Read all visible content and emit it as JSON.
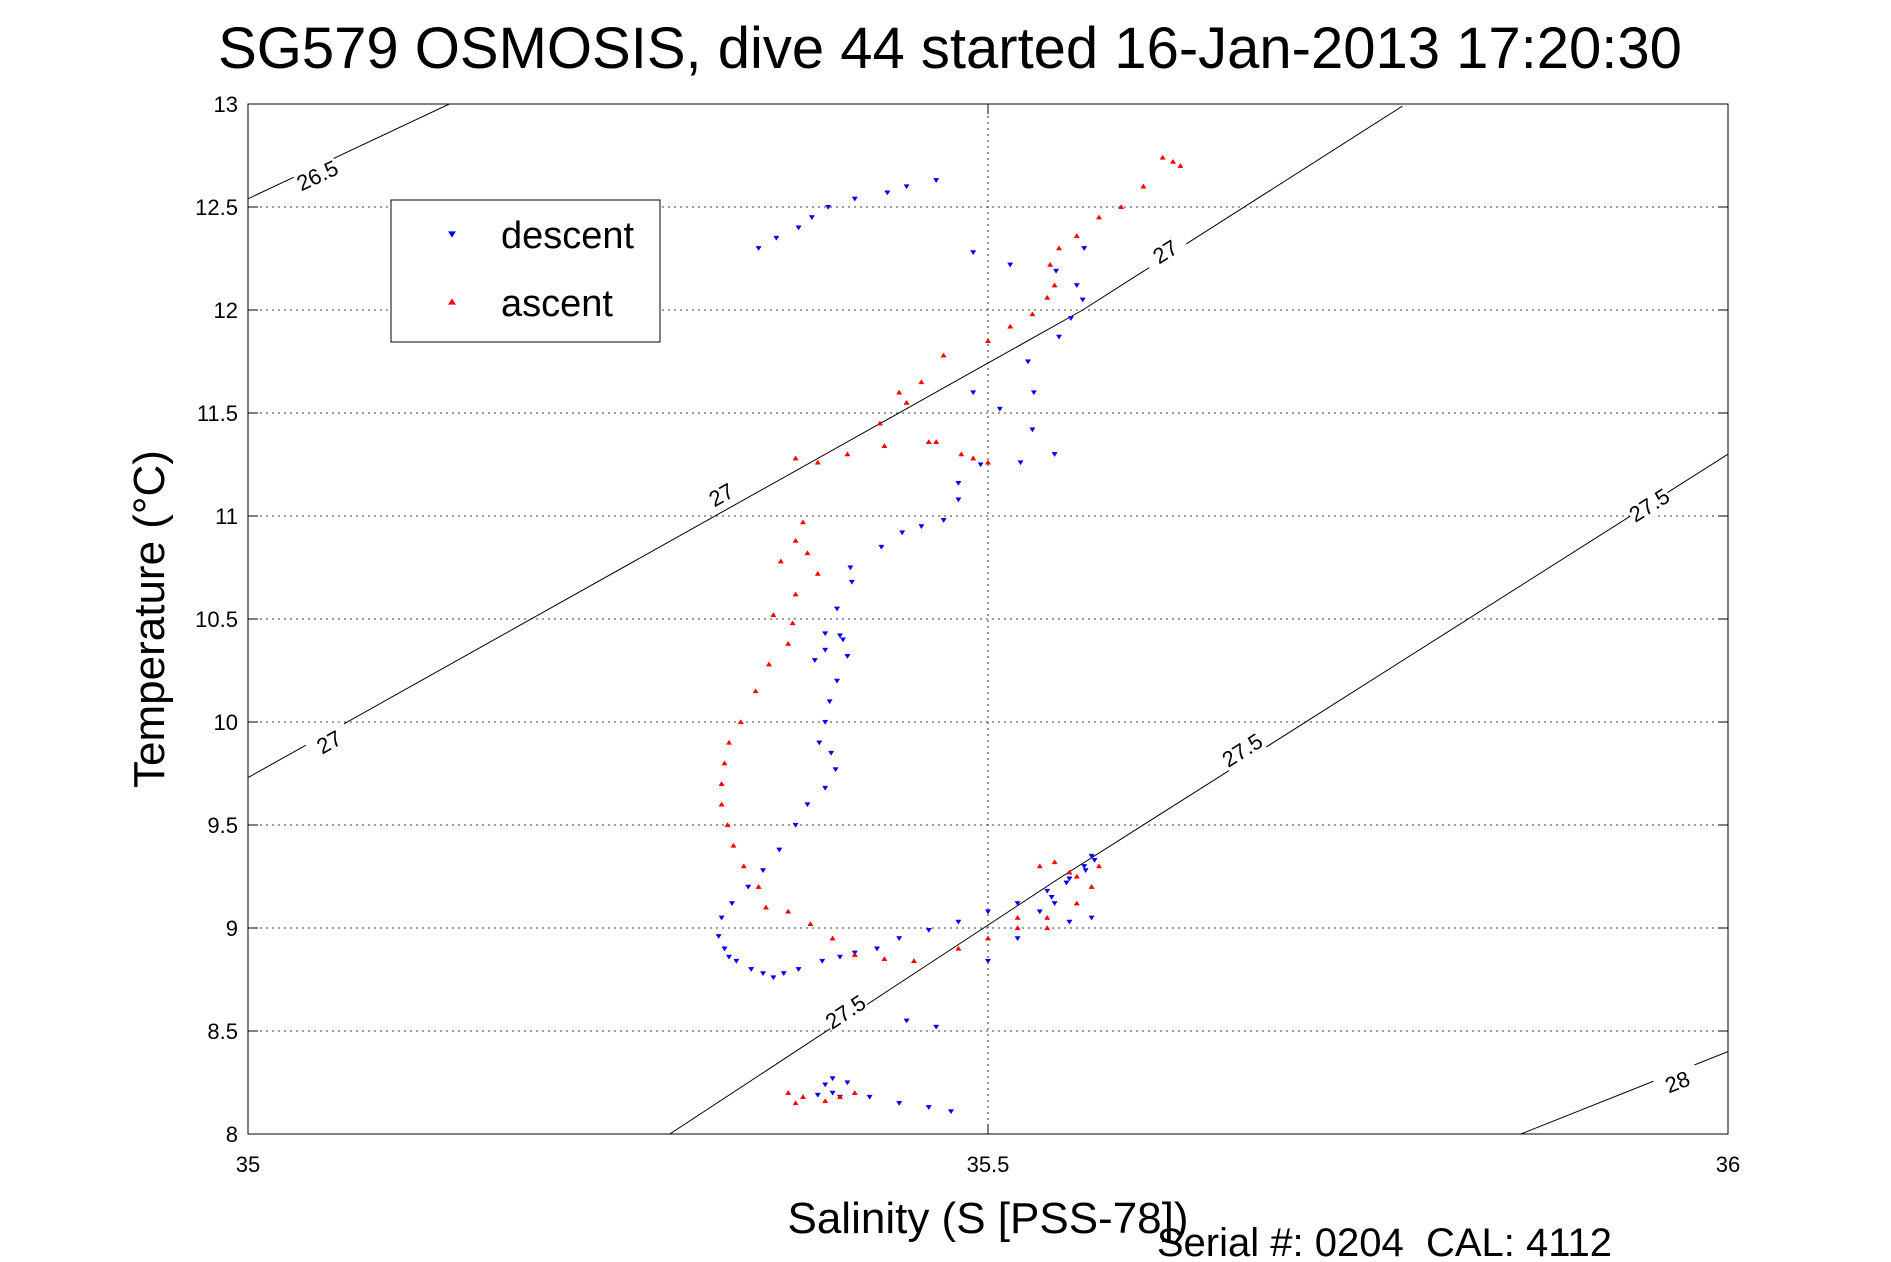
{
  "chart_data": {
    "type": "scatter",
    "title": "SG579 OSMOSIS, dive 44 started 16-Jan-2013 17:20:30",
    "xlabel": "Salinity (S [PSS-78])",
    "ylabel": "Temperature (°C)",
    "xlim": [
      35,
      36
    ],
    "ylim": [
      8,
      13
    ],
    "x_ticks": [
      "35",
      "35.5",
      "36"
    ],
    "y_ticks": [
      "8",
      "8.5",
      "9",
      "9.5",
      "10",
      "10.5",
      "11",
      "11.5",
      "12",
      "12.5",
      "13"
    ],
    "grid": true,
    "legend_position": "top-left",
    "footer": "Serial #: 0204  CAL: 4112",
    "density_contours": [
      {
        "label": "26.5",
        "points": [
          [
            35.0,
            12.54
          ],
          [
            35.136,
            13.0
          ]
        ],
        "label_at": [
          [
            35.047,
            12.65
          ]
        ]
      },
      {
        "label": "27",
        "points": [
          [
            35.0,
            9.73
          ],
          [
            35.564,
            12.0
          ],
          [
            35.78,
            12.99
          ]
        ],
        "label_at": [
          [
            35.055,
            9.9
          ],
          [
            35.32,
            11.1
          ],
          [
            35.62,
            12.28
          ]
        ]
      },
      {
        "label": "27.5",
        "points": [
          [
            35.285,
            8.0
          ],
          [
            35.55,
            9.25
          ],
          [
            36.0,
            11.3
          ]
        ],
        "label_at": [
          [
            35.404,
            8.59
          ],
          [
            35.672,
            9.86
          ],
          [
            35.947,
            11.05
          ]
        ]
      },
      {
        "label": "28",
        "points": [
          [
            35.86,
            8.0
          ],
          [
            36.0,
            8.4
          ]
        ],
        "label_at": [
          [
            35.966,
            8.25
          ]
        ]
      }
    ],
    "series": [
      {
        "name": "descent",
        "color": "#0000ff",
        "marker": "triangle-down",
        "x": [
          35.345,
          35.357,
          35.372,
          35.381,
          35.392,
          35.41,
          35.432,
          35.445,
          35.465,
          35.49,
          35.515,
          35.546,
          35.565,
          35.56,
          35.564,
          35.556,
          35.548,
          35.527,
          35.531,
          35.49,
          35.508,
          35.53,
          35.545,
          35.522,
          35.495,
          35.48,
          35.48,
          35.47,
          35.455,
          35.442,
          35.428,
          35.407,
          35.408,
          35.398,
          35.402,
          35.39,
          35.383,
          35.39,
          35.4,
          35.405,
          35.398,
          35.393,
          35.39,
          35.386,
          35.394,
          35.397,
          35.39,
          35.378,
          35.37,
          35.359,
          35.348,
          35.338,
          35.327,
          35.32,
          35.318,
          35.322,
          35.325,
          35.33,
          35.34,
          35.348,
          35.355,
          35.362,
          35.372,
          35.388,
          35.4,
          35.41,
          35.425,
          35.44,
          35.46,
          35.48,
          35.5,
          35.52,
          35.54,
          35.555,
          35.565,
          35.57,
          35.572,
          35.566,
          35.553,
          35.543,
          35.535,
          35.545,
          35.555,
          35.52,
          35.57,
          35.5,
          35.445,
          35.465,
          35.395,
          35.39,
          35.395,
          35.405,
          35.42,
          35.44,
          35.46,
          35.475,
          35.385,
          35.4
        ],
        "y": [
          12.3,
          12.35,
          12.4,
          12.45,
          12.5,
          12.54,
          12.57,
          12.6,
          12.63,
          12.28,
          12.22,
          12.19,
          12.3,
          12.12,
          12.05,
          11.96,
          11.87,
          11.75,
          11.6,
          11.6,
          11.52,
          11.42,
          11.3,
          11.26,
          11.25,
          11.16,
          11.08,
          10.98,
          10.95,
          10.92,
          10.85,
          10.75,
          10.68,
          10.55,
          10.4,
          10.43,
          10.3,
          10.35,
          10.42,
          10.32,
          10.2,
          10.1,
          10.0,
          9.9,
          9.85,
          9.77,
          9.68,
          9.6,
          9.5,
          9.38,
          9.28,
          9.2,
          9.12,
          9.05,
          8.96,
          8.9,
          8.86,
          8.84,
          8.8,
          8.78,
          8.76,
          8.78,
          8.8,
          8.84,
          8.86,
          8.88,
          8.9,
          8.95,
          8.99,
          9.03,
          9.08,
          9.12,
          9.18,
          9.24,
          9.3,
          9.35,
          9.33,
          9.28,
          9.22,
          9.15,
          9.08,
          9.12,
          9.03,
          8.95,
          9.05,
          8.84,
          8.55,
          8.52,
          8.2,
          8.24,
          8.27,
          8.25,
          8.18,
          8.15,
          8.13,
          8.11,
          8.19,
          8.18
        ]
      },
      {
        "name": "ascent",
        "color": "#ff0000",
        "marker": "triangle-up",
        "x": [
          35.618,
          35.625,
          35.63,
          35.605,
          35.59,
          35.575,
          35.56,
          35.548,
          35.542,
          35.545,
          35.54,
          35.53,
          35.515,
          35.5,
          35.47,
          35.455,
          35.44,
          35.445,
          35.427,
          35.465,
          35.49,
          35.5,
          35.482,
          35.46,
          35.43,
          35.405,
          35.385,
          35.37,
          35.375,
          35.37,
          35.36,
          35.378,
          35.385,
          35.37,
          35.355,
          35.368,
          35.365,
          35.352,
          35.343,
          35.333,
          35.325,
          35.322,
          35.32,
          35.32,
          35.324,
          35.328,
          35.335,
          35.345,
          35.35,
          35.365,
          35.38,
          35.395,
          35.41,
          35.43,
          35.45,
          35.48,
          35.5,
          35.52,
          35.54,
          35.56,
          35.57,
          35.56,
          35.575,
          35.555,
          35.545,
          35.535,
          35.52,
          35.54,
          35.365,
          35.375,
          35.39,
          35.4,
          35.41,
          35.37
        ],
        "y": [
          12.74,
          12.72,
          12.7,
          12.6,
          12.5,
          12.45,
          12.36,
          12.3,
          12.22,
          12.12,
          12.06,
          11.98,
          11.92,
          11.85,
          11.78,
          11.65,
          11.6,
          11.55,
          11.45,
          11.36,
          11.28,
          11.26,
          11.3,
          11.36,
          11.34,
          11.3,
          11.26,
          11.28,
          10.97,
          10.88,
          10.78,
          10.82,
          10.72,
          10.62,
          10.52,
          10.48,
          10.38,
          10.28,
          10.15,
          10.0,
          9.9,
          9.8,
          9.7,
          9.6,
          9.5,
          9.4,
          9.3,
          9.2,
          9.1,
          9.08,
          9.02,
          8.95,
          8.87,
          8.85,
          8.84,
          8.9,
          8.95,
          9.0,
          9.05,
          9.12,
          9.2,
          9.25,
          9.3,
          9.27,
          9.32,
          9.3,
          9.05,
          9.0,
          8.2,
          8.18,
          8.16,
          8.18,
          8.2,
          8.15
        ]
      }
    ]
  }
}
